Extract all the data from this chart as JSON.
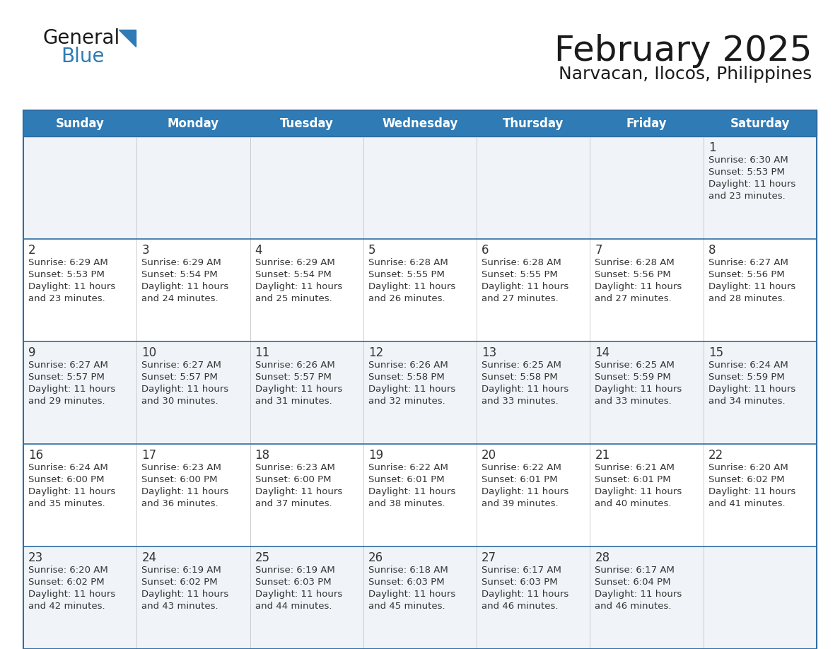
{
  "title": "February 2025",
  "subtitle": "Narvacan, Ilocos, Philippines",
  "header_bg_color": "#2E7BB5",
  "header_text_color": "#FFFFFF",
  "weekdays": [
    "Sunday",
    "Monday",
    "Tuesday",
    "Wednesday",
    "Thursday",
    "Friday",
    "Saturday"
  ],
  "row_bg_odd": "#F0F4F8",
  "row_bg_even": "#FFFFFF",
  "border_color": "#2E6DA4",
  "day_number_color": "#333333",
  "cell_text_color": "#333333",
  "logo_general_color": "#1a1a1a",
  "logo_blue_color": "#2E7BB5",
  "logo_triangle_color": "#2E7BB5",
  "title_color": "#1a1a1a",
  "subtitle_color": "#1a1a1a",
  "calendar": [
    [
      null,
      null,
      null,
      null,
      null,
      null,
      {
        "day": 1,
        "sunrise": "6:30 AM",
        "sunset": "5:53 PM",
        "daylight": "11 hours and 23 minutes."
      }
    ],
    [
      {
        "day": 2,
        "sunrise": "6:29 AM",
        "sunset": "5:53 PM",
        "daylight": "11 hours and 23 minutes."
      },
      {
        "day": 3,
        "sunrise": "6:29 AM",
        "sunset": "5:54 PM",
        "daylight": "11 hours and 24 minutes."
      },
      {
        "day": 4,
        "sunrise": "6:29 AM",
        "sunset": "5:54 PM",
        "daylight": "11 hours and 25 minutes."
      },
      {
        "day": 5,
        "sunrise": "6:28 AM",
        "sunset": "5:55 PM",
        "daylight": "11 hours and 26 minutes."
      },
      {
        "day": 6,
        "sunrise": "6:28 AM",
        "sunset": "5:55 PM",
        "daylight": "11 hours and 27 minutes."
      },
      {
        "day": 7,
        "sunrise": "6:28 AM",
        "sunset": "5:56 PM",
        "daylight": "11 hours and 27 minutes."
      },
      {
        "day": 8,
        "sunrise": "6:27 AM",
        "sunset": "5:56 PM",
        "daylight": "11 hours and 28 minutes."
      }
    ],
    [
      {
        "day": 9,
        "sunrise": "6:27 AM",
        "sunset": "5:57 PM",
        "daylight": "11 hours and 29 minutes."
      },
      {
        "day": 10,
        "sunrise": "6:27 AM",
        "sunset": "5:57 PM",
        "daylight": "11 hours and 30 minutes."
      },
      {
        "day": 11,
        "sunrise": "6:26 AM",
        "sunset": "5:57 PM",
        "daylight": "11 hours and 31 minutes."
      },
      {
        "day": 12,
        "sunrise": "6:26 AM",
        "sunset": "5:58 PM",
        "daylight": "11 hours and 32 minutes."
      },
      {
        "day": 13,
        "sunrise": "6:25 AM",
        "sunset": "5:58 PM",
        "daylight": "11 hours and 33 minutes."
      },
      {
        "day": 14,
        "sunrise": "6:25 AM",
        "sunset": "5:59 PM",
        "daylight": "11 hours and 33 minutes."
      },
      {
        "day": 15,
        "sunrise": "6:24 AM",
        "sunset": "5:59 PM",
        "daylight": "11 hours and 34 minutes."
      }
    ],
    [
      {
        "day": 16,
        "sunrise": "6:24 AM",
        "sunset": "6:00 PM",
        "daylight": "11 hours and 35 minutes."
      },
      {
        "day": 17,
        "sunrise": "6:23 AM",
        "sunset": "6:00 PM",
        "daylight": "11 hours and 36 minutes."
      },
      {
        "day": 18,
        "sunrise": "6:23 AM",
        "sunset": "6:00 PM",
        "daylight": "11 hours and 37 minutes."
      },
      {
        "day": 19,
        "sunrise": "6:22 AM",
        "sunset": "6:01 PM",
        "daylight": "11 hours and 38 minutes."
      },
      {
        "day": 20,
        "sunrise": "6:22 AM",
        "sunset": "6:01 PM",
        "daylight": "11 hours and 39 minutes."
      },
      {
        "day": 21,
        "sunrise": "6:21 AM",
        "sunset": "6:01 PM",
        "daylight": "11 hours and 40 minutes."
      },
      {
        "day": 22,
        "sunrise": "6:20 AM",
        "sunset": "6:02 PM",
        "daylight": "11 hours and 41 minutes."
      }
    ],
    [
      {
        "day": 23,
        "sunrise": "6:20 AM",
        "sunset": "6:02 PM",
        "daylight": "11 hours and 42 minutes."
      },
      {
        "day": 24,
        "sunrise": "6:19 AM",
        "sunset": "6:02 PM",
        "daylight": "11 hours and 43 minutes."
      },
      {
        "day": 25,
        "sunrise": "6:19 AM",
        "sunset": "6:03 PM",
        "daylight": "11 hours and 44 minutes."
      },
      {
        "day": 26,
        "sunrise": "6:18 AM",
        "sunset": "6:03 PM",
        "daylight": "11 hours and 45 minutes."
      },
      {
        "day": 27,
        "sunrise": "6:17 AM",
        "sunset": "6:03 PM",
        "daylight": "11 hours and 46 minutes."
      },
      {
        "day": 28,
        "sunrise": "6:17 AM",
        "sunset": "6:04 PM",
        "daylight": "11 hours and 46 minutes."
      },
      null
    ]
  ]
}
